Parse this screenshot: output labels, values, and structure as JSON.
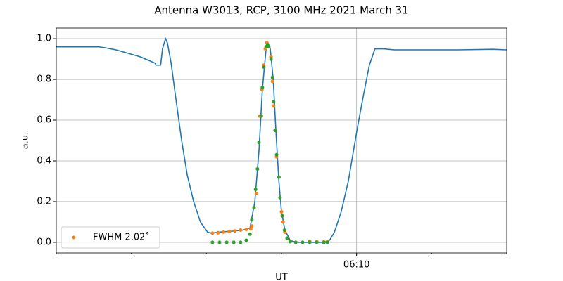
{
  "chart_data": {
    "type": "line",
    "title": "Antenna W3013, RCP, 3100 MHz 2021 March 31",
    "xlabel": "UT",
    "ylabel": "a.u.",
    "xlim": [
      2,
      14
    ],
    "ylim": [
      -0.052,
      1.052
    ],
    "xticks": [
      {
        "value": 10,
        "label": "06:10"
      }
    ],
    "xminorticks": [
      2,
      4,
      6,
      8,
      12,
      14
    ],
    "yticks": [
      {
        "value": 0,
        "label": "0.0"
      },
      0.2,
      0.4,
      0.6,
      0.8,
      {
        "value": 1,
        "label": "1.0"
      }
    ],
    "grid": true,
    "legend": "lower left",
    "series": [
      {
        "kind": "line",
        "color": "#1f77b4",
        "x": [
          2.0,
          2.75,
          3.13,
          3.31,
          3.59,
          3.88,
          4.25,
          4.44,
          4.63,
          4.66,
          4.78,
          4.83,
          4.91,
          4.96,
          5.06,
          5.19,
          5.34,
          5.49,
          5.66,
          5.84,
          6.03,
          6.13,
          6.31,
          6.69,
          6.97,
          7.16,
          7.29,
          7.4,
          7.49,
          7.59,
          7.64,
          7.7,
          7.78,
          7.85,
          7.93,
          8.0,
          8.09,
          8.23,
          8.38,
          8.75,
          9.13,
          9.28,
          9.41,
          9.59,
          9.78,
          10.01,
          10.16,
          10.34,
          10.49,
          10.72,
          11.0,
          11.75,
          12.69,
          13.63,
          14.0
        ],
        "values": [
          0.96,
          0.96,
          0.96,
          0.955,
          0.945,
          0.93,
          0.91,
          0.895,
          0.88,
          0.87,
          0.87,
          0.95,
          1.0,
          0.98,
          0.88,
          0.7,
          0.5,
          0.33,
          0.2,
          0.1,
          0.05,
          0.045,
          0.05,
          0.055,
          0.06,
          0.07,
          0.2,
          0.45,
          0.75,
          0.95,
          0.98,
          0.95,
          0.8,
          0.55,
          0.3,
          0.15,
          0.06,
          0.01,
          0.0,
          0.0,
          0.0,
          0.01,
          0.05,
          0.15,
          0.3,
          0.55,
          0.7,
          0.87,
          0.95,
          0.95,
          0.945,
          0.945,
          0.945,
          0.948,
          0.945
        ]
      },
      {
        "kind": "scatter",
        "name": "FWHM 2.02˚",
        "color": "#ff7f0e",
        "x": [
          6.16,
          6.31,
          6.46,
          6.61,
          6.76,
          6.91,
          7.06,
          7.18,
          7.21,
          7.27,
          7.33,
          7.36,
          7.42,
          7.48,
          7.53,
          7.57,
          7.61,
          7.66,
          7.72,
          7.76,
          7.79,
          7.83,
          7.87,
          7.93,
          7.96,
          8.0,
          8.04,
          8.09,
          8.15,
          8.23,
          8.38,
          8.56,
          8.75,
          8.94,
          9.13,
          9.22
        ],
        "values": [
          0.045,
          0.047,
          0.05,
          0.053,
          0.056,
          0.06,
          0.063,
          0.066,
          0.08,
          0.17,
          0.24,
          0.36,
          0.62,
          0.75,
          0.87,
          0.95,
          0.98,
          0.96,
          0.91,
          0.79,
          0.67,
          0.55,
          0.42,
          0.32,
          0.22,
          0.15,
          0.1,
          0.05,
          0.02,
          0.005,
          0.0,
          0.0,
          0.005,
          0.003,
          0.002,
          0.003
        ]
      },
      {
        "kind": "scatter",
        "color": "#2ca02c",
        "x": [
          6.16,
          6.35,
          6.54,
          6.73,
          6.91,
          7.06,
          7.16,
          7.21,
          7.27,
          7.31,
          7.36,
          7.4,
          7.46,
          7.49,
          7.53,
          7.59,
          7.63,
          7.66,
          7.72,
          7.76,
          7.79,
          7.83,
          7.87,
          7.93,
          7.96,
          8.02,
          8.08,
          8.15,
          8.23,
          8.38,
          8.56,
          8.75,
          8.94,
          9.13,
          9.22
        ],
        "values": [
          0,
          0,
          0,
          0,
          0,
          0.01,
          0.04,
          0.11,
          0.17,
          0.26,
          0.36,
          0.49,
          0.62,
          0.76,
          0.86,
          0.96,
          0.97,
          0.96,
          0.9,
          0.81,
          0.69,
          0.55,
          0.43,
          0.32,
          0.22,
          0.13,
          0.06,
          0.02,
          0.003,
          0,
          0,
          0,
          0,
          0,
          0
        ]
      }
    ]
  }
}
